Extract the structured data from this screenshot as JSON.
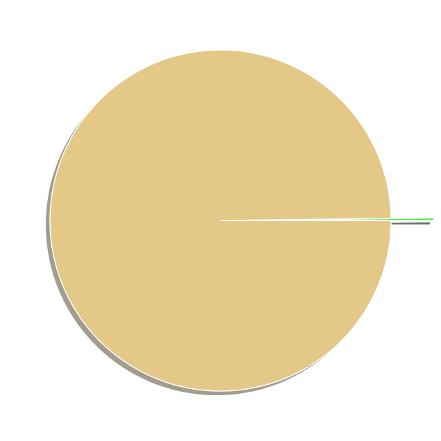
{
  "chart_data": {
    "type": "pie",
    "title": "",
    "legend": false,
    "start_angle_deg": 0,
    "direction": "counterclockwise",
    "slices": [
      {
        "label": "",
        "value": 0.2,
        "color": "#22ee22",
        "shadow_color": "#5f7f5f",
        "explode": true
      },
      {
        "label": "",
        "value": 99.8,
        "color": "#e3c888",
        "shadow_color": "#a29d8f",
        "explode": false
      }
    ]
  }
}
